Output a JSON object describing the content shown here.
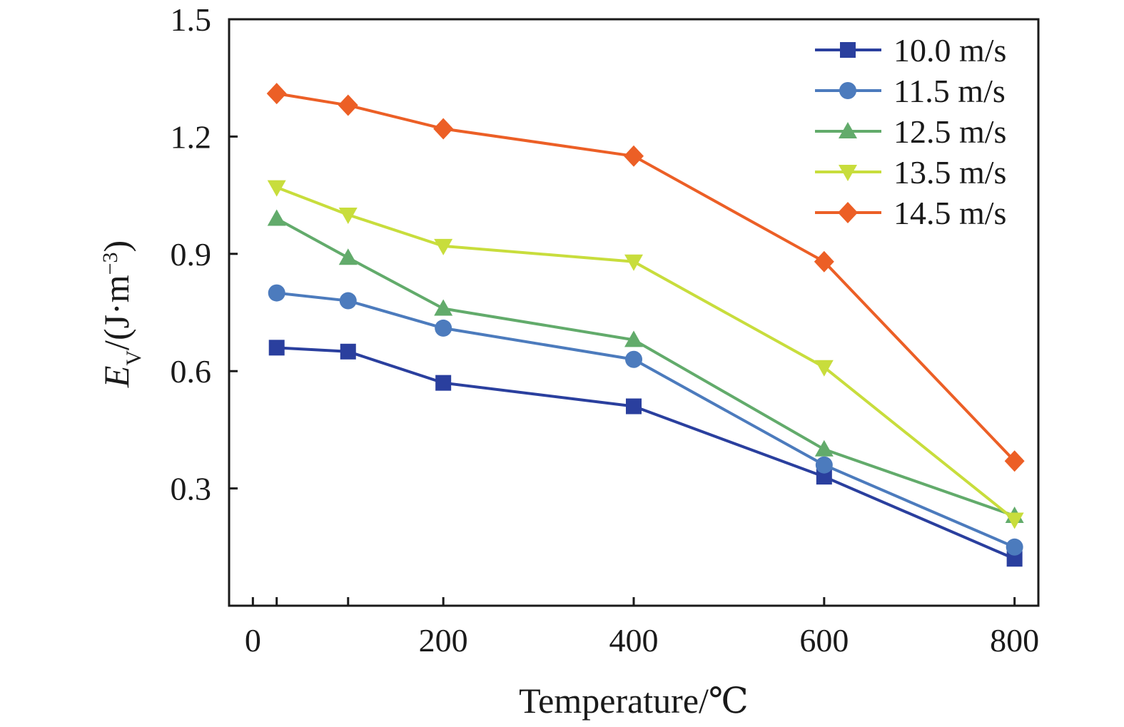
{
  "chart_data": {
    "type": "line",
    "xlabel": "Temperature/℃",
    "ylabel": {
      "main": "E",
      "subscript": "V",
      "unit_prefix": "/(J·m",
      "superscript": "−3",
      "unit_suffix": ")"
    },
    "x_ticks": [
      "0",
      "200",
      "400",
      "600",
      "800"
    ],
    "y_ticks": [
      "0.3",
      "0.6",
      "0.9",
      "1.2",
      "1.5"
    ],
    "xlim": [
      -25,
      825
    ],
    "ylim": [
      0,
      1.5
    ],
    "x": [
      25,
      100,
      200,
      400,
      600,
      800
    ],
    "legend_position": "top-right",
    "grid": false,
    "series": [
      {
        "name": "10.0 m/s",
        "color": "#2a3f9e",
        "marker": "square",
        "values": [
          0.66,
          0.65,
          0.57,
          0.51,
          0.33,
          0.12
        ]
      },
      {
        "name": "11.5 m/s",
        "color": "#4c7bbd",
        "marker": "circle",
        "values": [
          0.8,
          0.78,
          0.71,
          0.63,
          0.36,
          0.15
        ]
      },
      {
        "name": "12.5 m/s",
        "color": "#62ab6b",
        "marker": "triangle-up",
        "values": [
          0.99,
          0.89,
          0.76,
          0.68,
          0.4,
          0.23
        ]
      },
      {
        "name": "13.5 m/s",
        "color": "#c8dd3c",
        "marker": "triangle-down",
        "values": [
          1.07,
          1.0,
          0.92,
          0.88,
          0.61,
          0.22
        ]
      },
      {
        "name": "14.5 m/s",
        "color": "#ec5f26",
        "marker": "diamond",
        "values": [
          1.31,
          1.28,
          1.22,
          1.15,
          0.88,
          0.37
        ]
      }
    ]
  }
}
